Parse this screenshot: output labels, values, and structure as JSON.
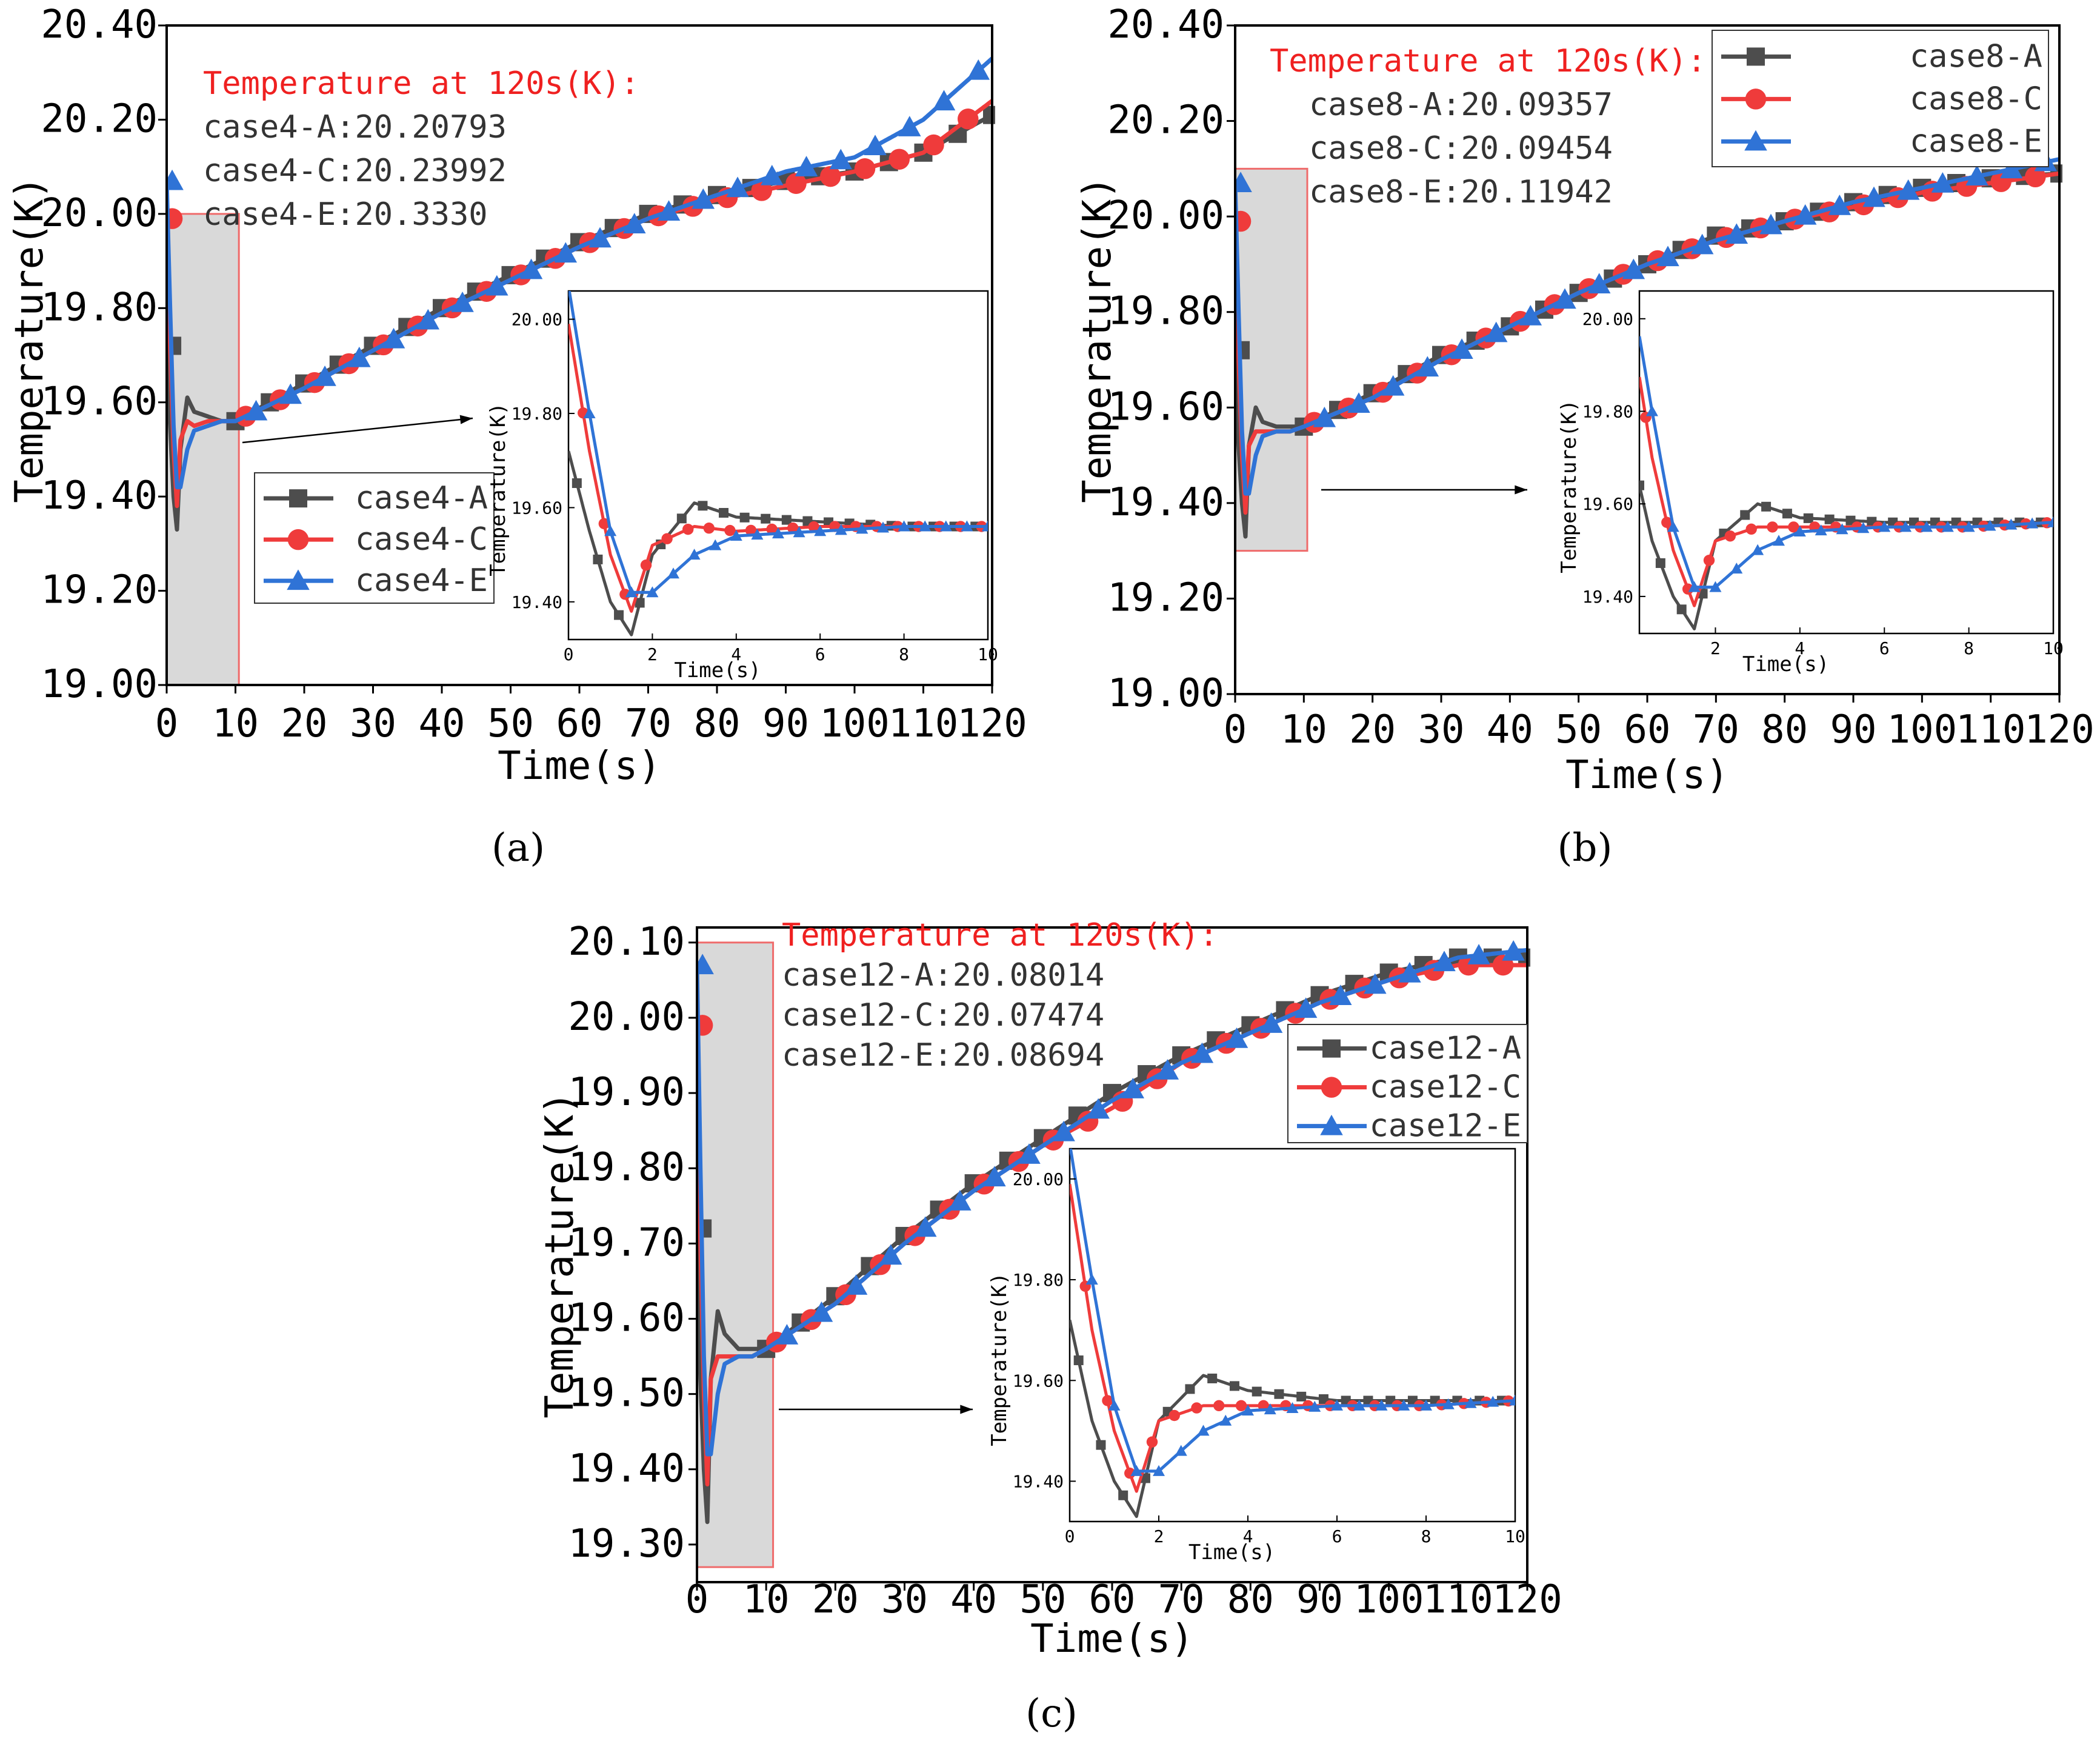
{
  "figure": {
    "colors": {
      "case_A": "#4d4d4d",
      "case_C": "#ef3b3b",
      "case_E": "#2f73d6",
      "annotation_title": "#ef2020",
      "highlight_border": "#ef6b6b",
      "highlight_fill": "#d9d9d9"
    },
    "annotation_title": "Temperature at 120s(K):"
  },
  "chart_data": [
    {
      "type": "line",
      "panel_label": "(a)",
      "xlabel": "Time(s)",
      "ylabel": "Temperature(K)",
      "xlim": [
        0,
        120
      ],
      "ylim": [
        19.0,
        20.4
      ],
      "xticks": [
        "0",
        "10",
        "20",
        "30",
        "40",
        "50",
        "60",
        "70",
        "80",
        "90",
        "100",
        "110",
        "120"
      ],
      "yticks": [
        "19.00",
        "19.20",
        "19.40",
        "19.60",
        "19.80",
        "20.00",
        "20.20",
        "20.40"
      ],
      "legend": [
        "case4-A",
        "case4-C",
        "case4-E"
      ],
      "legend_position": "middle-left",
      "annotation_lines": [
        "case4-A:20.20793",
        "case4-C:20.23992",
        "case4-E:20.3330"
      ],
      "series": [
        {
          "name": "case4-A",
          "x": [
            0,
            0.5,
            1,
            1.5,
            2,
            3,
            4,
            6,
            8,
            10,
            20,
            30,
            40,
            50,
            60,
            70,
            80,
            90,
            100,
            110,
            120
          ],
          "values": [
            19.72,
            19.55,
            19.4,
            19.33,
            19.5,
            19.61,
            19.58,
            19.57,
            19.56,
            19.56,
            19.64,
            19.72,
            19.8,
            19.87,
            19.94,
            20.0,
            20.04,
            20.07,
            20.09,
            20.13,
            20.21
          ]
        },
        {
          "name": "case4-C",
          "x": [
            0,
            0.5,
            1,
            1.5,
            2,
            3,
            4,
            6,
            8,
            10,
            20,
            30,
            40,
            50,
            60,
            70,
            80,
            90,
            100,
            110,
            120
          ],
          "values": [
            19.99,
            19.72,
            19.5,
            19.38,
            19.52,
            19.56,
            19.55,
            19.56,
            19.56,
            19.56,
            19.63,
            19.71,
            19.79,
            19.86,
            19.93,
            19.99,
            20.03,
            20.06,
            20.09,
            20.13,
            20.24
          ]
        },
        {
          "name": "case4-E",
          "x": [
            0,
            0.5,
            1,
            1.5,
            2,
            3,
            4,
            6,
            8,
            10,
            20,
            30,
            40,
            50,
            60,
            70,
            80,
            90,
            100,
            110,
            120
          ],
          "values": [
            20.07,
            19.8,
            19.55,
            19.42,
            19.42,
            19.5,
            19.54,
            19.55,
            19.56,
            19.56,
            19.63,
            19.71,
            19.79,
            19.86,
            19.93,
            19.99,
            20.04,
            20.09,
            20.12,
            20.2,
            20.33
          ]
        }
      ],
      "inset": {
        "xlabel": "Time(s)",
        "ylabel": "Temperature(K)",
        "xlim": [
          0,
          10
        ],
        "ylim": [
          19.32,
          20.06
        ],
        "xticks": [
          "0",
          "2",
          "4",
          "6",
          "8",
          "10"
        ],
        "yticks": [
          "19.40",
          "19.60",
          "19.80",
          "20.00"
        ]
      }
    },
    {
      "type": "line",
      "panel_label": "(b)",
      "xlabel": "Time(s)",
      "ylabel": "Temperature(K)",
      "xlim": [
        0,
        120
      ],
      "ylim": [
        19.0,
        20.4
      ],
      "xticks": [
        "0",
        "10",
        "20",
        "30",
        "40",
        "50",
        "60",
        "70",
        "80",
        "90",
        "100",
        "110",
        "120"
      ],
      "yticks": [
        "19.00",
        "19.20",
        "19.40",
        "19.60",
        "19.80",
        "20.00",
        "20.20",
        "20.40"
      ],
      "legend": [
        "case8-A",
        "case8-C",
        "case8-E"
      ],
      "legend_position": "top-right",
      "annotation_lines": [
        "case8-A:20.09357",
        "case8-C:20.09454",
        "case8-E:20.11942"
      ],
      "series": [
        {
          "name": "case8-A",
          "x": [
            0,
            0.5,
            1,
            1.5,
            2,
            3,
            4,
            6,
            8,
            10,
            20,
            30,
            40,
            50,
            60,
            70,
            80,
            90,
            100,
            110,
            120
          ],
          "values": [
            19.72,
            19.52,
            19.4,
            19.33,
            19.52,
            19.6,
            19.57,
            19.56,
            19.56,
            19.56,
            19.63,
            19.71,
            19.77,
            19.84,
            19.9,
            19.96,
            19.99,
            20.03,
            20.06,
            20.08,
            20.09
          ]
        },
        {
          "name": "case8-C",
          "x": [
            0,
            0.5,
            1,
            1.5,
            2,
            3,
            4,
            6,
            8,
            10,
            20,
            30,
            40,
            50,
            60,
            70,
            80,
            90,
            100,
            110,
            120
          ],
          "values": [
            19.99,
            19.7,
            19.5,
            19.38,
            19.52,
            19.55,
            19.55,
            19.55,
            19.55,
            19.56,
            19.62,
            19.7,
            19.77,
            19.84,
            19.9,
            19.95,
            19.99,
            20.02,
            20.05,
            20.07,
            20.09
          ]
        },
        {
          "name": "case8-E",
          "x": [
            0,
            0.5,
            1,
            1.5,
            2,
            3,
            4,
            6,
            8,
            10,
            20,
            30,
            40,
            50,
            60,
            70,
            80,
            90,
            100,
            110,
            120
          ],
          "values": [
            20.07,
            19.8,
            19.55,
            19.42,
            19.42,
            19.5,
            19.54,
            19.55,
            19.55,
            19.56,
            19.62,
            19.7,
            19.77,
            19.84,
            19.9,
            19.95,
            19.99,
            20.03,
            20.06,
            20.09,
            20.12
          ]
        }
      ],
      "inset": {
        "xlabel": "Time(s)",
        "ylabel": "Temperature(K)",
        "xlim": [
          0.2,
          10
        ],
        "ylim": [
          19.32,
          20.06
        ],
        "xticks": [
          "2",
          "4",
          "6",
          "8",
          "10"
        ],
        "yticks": [
          "19.40",
          "19.60",
          "19.80",
          "20.00"
        ]
      }
    },
    {
      "type": "line",
      "panel_label": "(c)",
      "xlabel": "Time(s)",
      "ylabel": "Temperature(K)",
      "xlim": [
        0,
        120
      ],
      "ylim": [
        19.25,
        20.12
      ],
      "xticks": [
        "0",
        "10",
        "20",
        "30",
        "40",
        "50",
        "60",
        "70",
        "80",
        "90",
        "100",
        "110",
        "120"
      ],
      "yticks": [
        "19.30",
        "19.40",
        "19.50",
        "19.60",
        "19.70",
        "19.80",
        "19.90",
        "20.00",
        "20.10"
      ],
      "legend": [
        "case12-A",
        "case12-C",
        "case12-E"
      ],
      "legend_position": "top-right",
      "annotation_lines": [
        "case12-A:20.08014",
        "case12-C:20.07474",
        "case12-E:20.08694"
      ],
      "series": [
        {
          "name": "case12-A",
          "x": [
            0,
            0.5,
            1,
            1.5,
            2,
            3,
            4,
            6,
            8,
            10,
            20,
            30,
            40,
            50,
            60,
            70,
            80,
            90,
            100,
            110,
            120
          ],
          "values": [
            19.72,
            19.52,
            19.4,
            19.33,
            19.52,
            19.61,
            19.58,
            19.56,
            19.56,
            19.56,
            19.63,
            19.71,
            19.78,
            19.84,
            19.9,
            19.95,
            19.99,
            20.03,
            20.06,
            20.08,
            20.08
          ]
        },
        {
          "name": "case12-C",
          "x": [
            0,
            0.5,
            1,
            1.5,
            2,
            3,
            4,
            6,
            8,
            10,
            20,
            30,
            40,
            50,
            60,
            70,
            80,
            90,
            100,
            110,
            120
          ],
          "values": [
            19.99,
            19.7,
            19.5,
            19.38,
            19.52,
            19.55,
            19.55,
            19.55,
            19.55,
            19.56,
            19.62,
            19.7,
            19.77,
            19.83,
            19.88,
            19.94,
            19.98,
            20.02,
            20.05,
            20.07,
            20.07
          ]
        },
        {
          "name": "case12-E",
          "x": [
            0,
            0.5,
            1,
            1.5,
            2,
            3,
            4,
            6,
            8,
            10,
            20,
            30,
            40,
            50,
            60,
            70,
            80,
            90,
            100,
            110,
            120
          ],
          "values": [
            20.07,
            19.8,
            19.55,
            19.42,
            19.42,
            19.5,
            19.54,
            19.55,
            19.55,
            19.56,
            19.62,
            19.7,
            19.77,
            19.83,
            19.89,
            19.94,
            19.98,
            20.02,
            20.05,
            20.08,
            20.09
          ]
        }
      ],
      "inset": {
        "xlabel": "Time(s)",
        "ylabel": "Temperature(K)",
        "xlim": [
          0,
          10
        ],
        "ylim": [
          19.32,
          20.06
        ],
        "xticks": [
          "0",
          "2",
          "4",
          "6",
          "8",
          "10"
        ],
        "yticks": [
          "19.40",
          "19.60",
          "19.80",
          "20.00"
        ]
      }
    }
  ]
}
